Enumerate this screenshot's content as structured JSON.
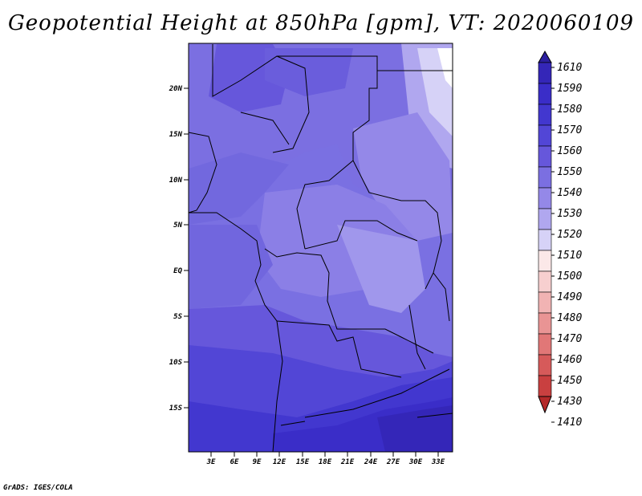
{
  "title": "Geopotential Height at 850hPa [gpm], VT: 2020060109",
  "footer": "GrADS: IGES/COLA",
  "map": {
    "lat_labels": [
      "20N",
      "15N",
      "10N",
      "5N",
      "EQ",
      "5S",
      "10S",
      "15S"
    ],
    "lon_labels": [
      "3E",
      "6E",
      "9E",
      "12E",
      "15E",
      "18E",
      "21E",
      "24E",
      "27E",
      "30E",
      "33E"
    ]
  },
  "colorbar": {
    "levels": [
      "1610",
      "1590",
      "1580",
      "1570",
      "1560",
      "1550",
      "1540",
      "1530",
      "1520",
      "1510",
      "1500",
      "1490",
      "1480",
      "1470",
      "1460",
      "1450",
      "1430",
      "1410"
    ],
    "colors": [
      "#2c1fa0",
      "#3426b8",
      "#3a2dc8",
      "#4237cf",
      "#5246d6",
      "#6657db",
      "#7b6fe1",
      "#9488e8",
      "#b0a7ef",
      "#d6d2f7",
      "#fbe8e8",
      "#f7cfcf",
      "#f1b3b3",
      "#e99494",
      "#e17777",
      "#d65a5a",
      "#c94040",
      "#b42a2a"
    ]
  }
}
